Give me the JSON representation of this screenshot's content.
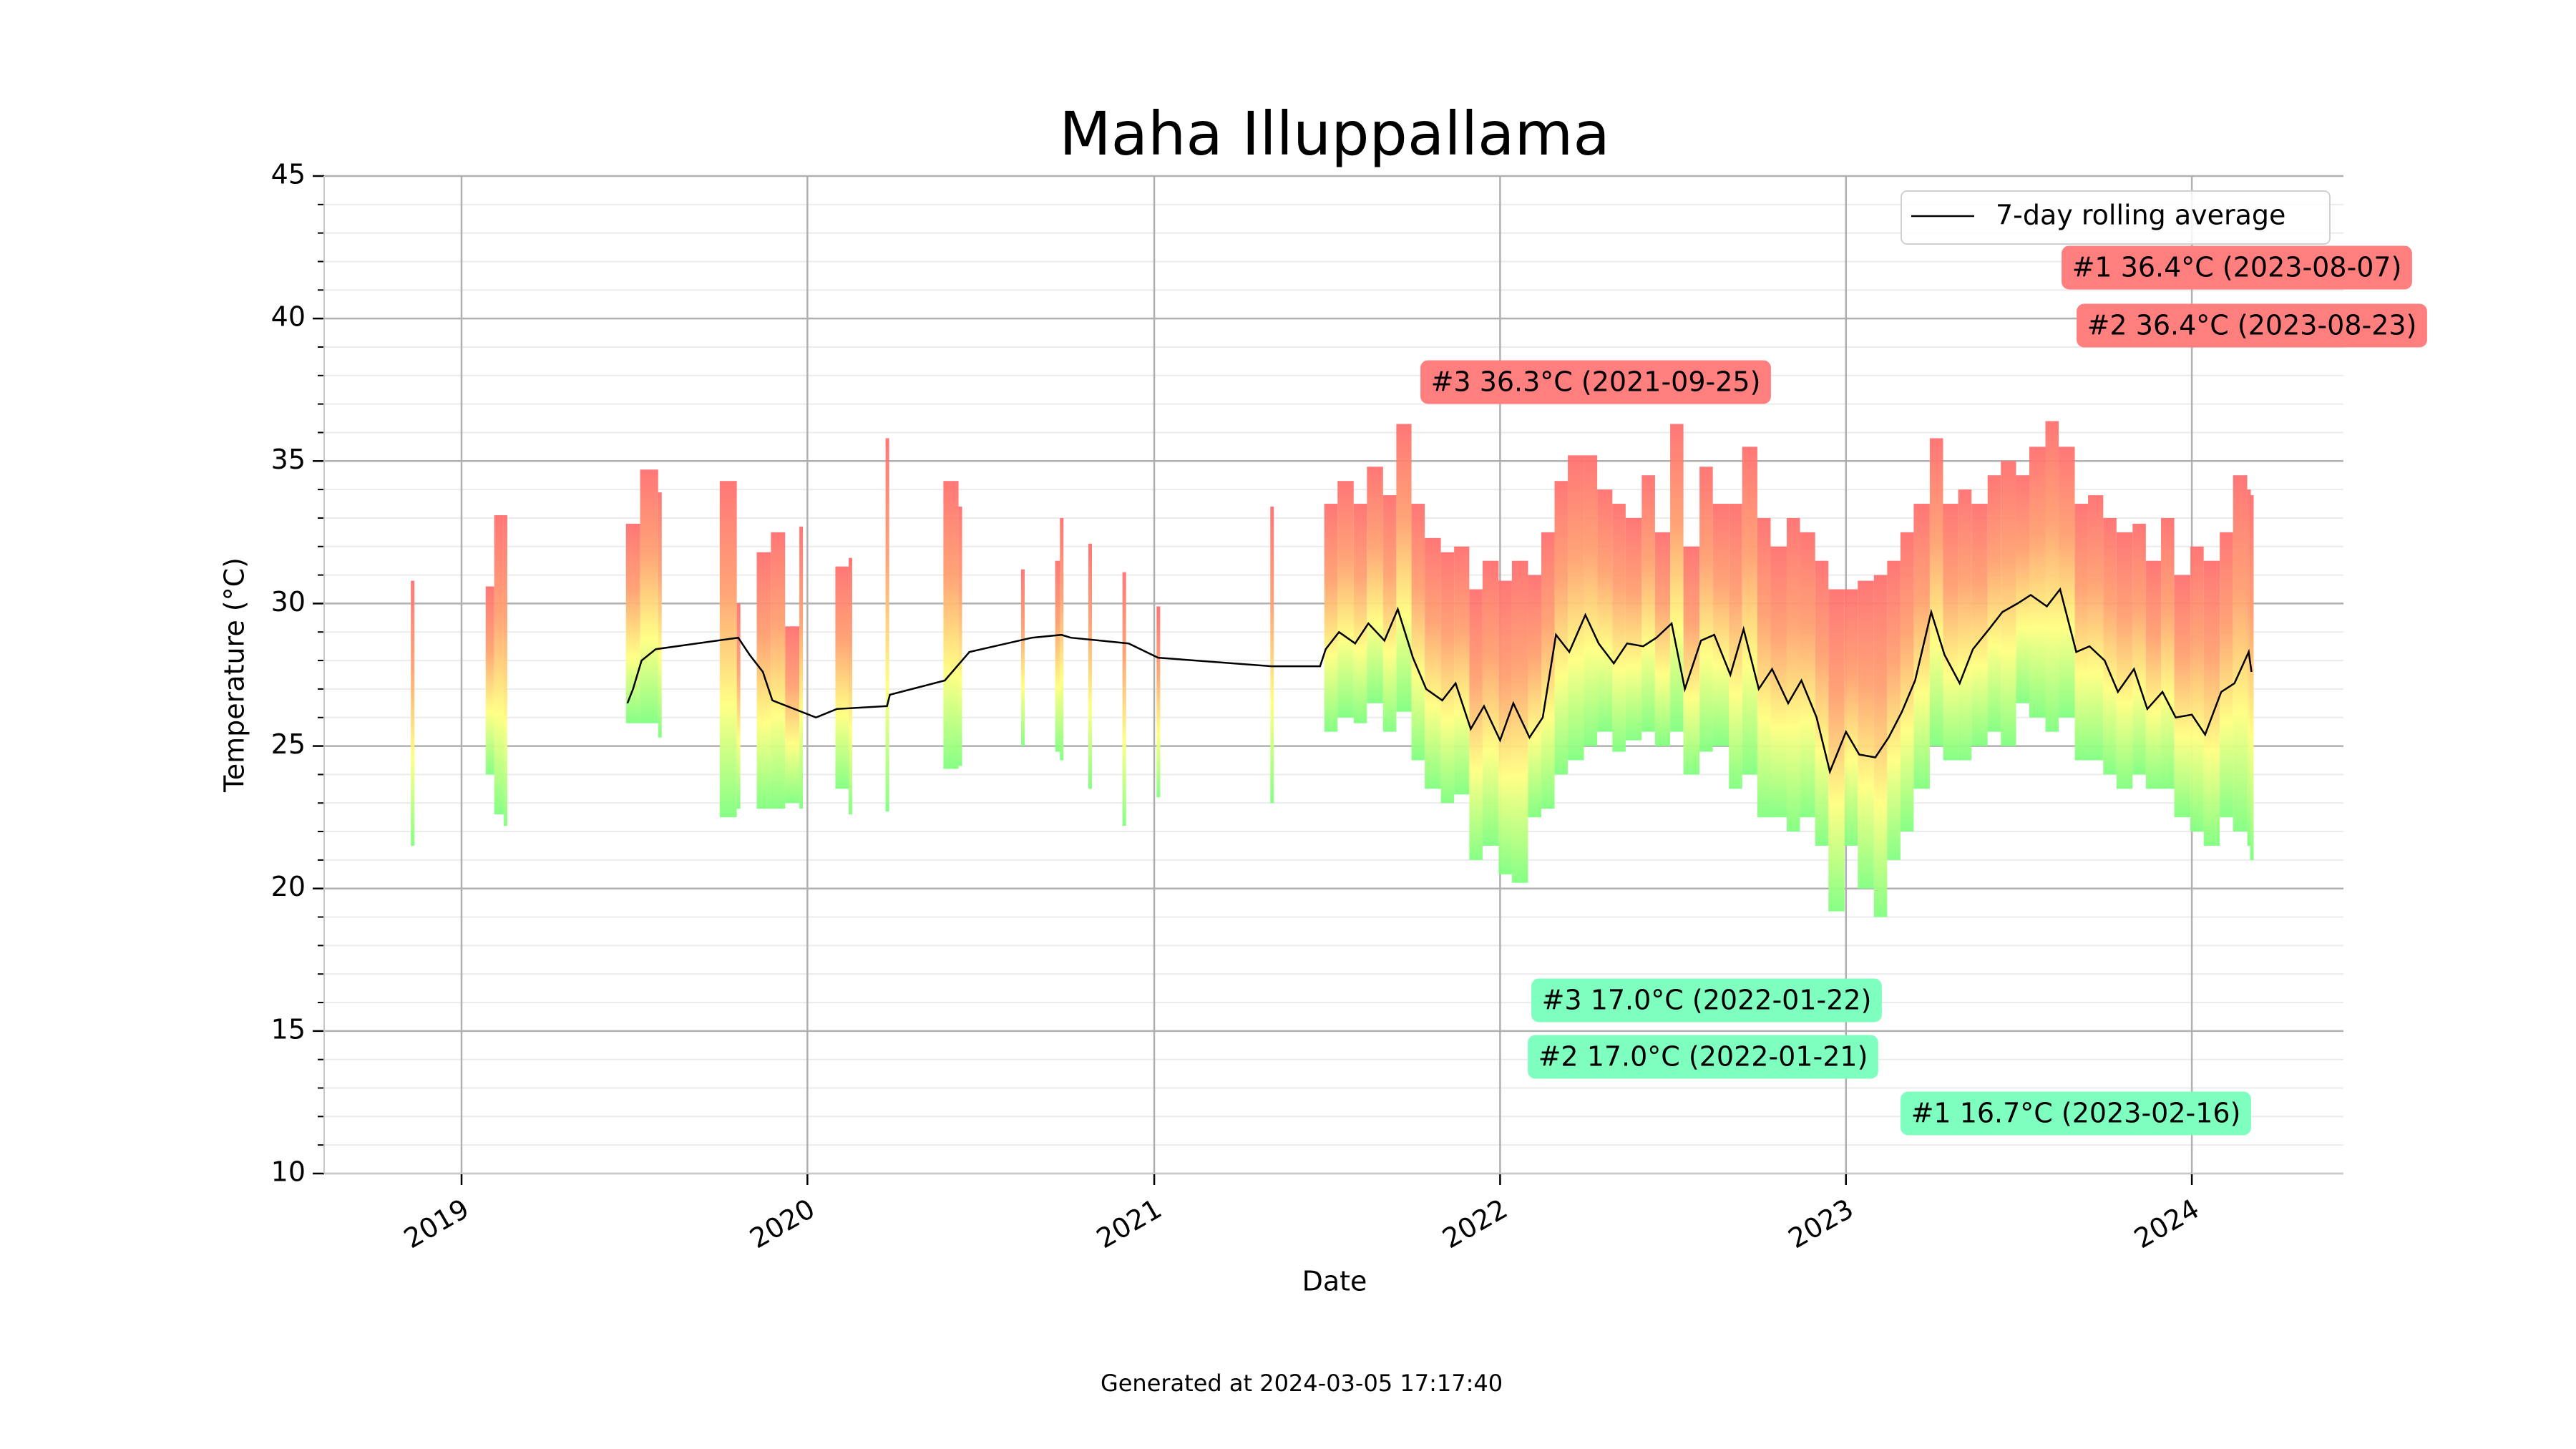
{
  "chart_data": {
    "type": "range-bar",
    "title": "Maha Illuppallama",
    "x_label": "Date",
    "y_label": "Temperature (°C)",
    "xlim": [
      "2018-08-09",
      "2024-06-09"
    ],
    "xticks": [
      {
        "value": "2019-01-01",
        "label": "2019"
      },
      {
        "value": "2020-01-01",
        "label": "2020"
      },
      {
        "value": "2021-01-01",
        "label": "2021"
      },
      {
        "value": "2022-01-01",
        "label": "2022"
      },
      {
        "value": "2023-01-01",
        "label": "2023"
      },
      {
        "value": "2024-01-01",
        "label": "2024"
      }
    ],
    "ylim": [
      10,
      45
    ],
    "yticks": [
      10,
      15,
      20,
      25,
      30,
      35,
      40,
      45
    ],
    "yminorticks": [
      11,
      12,
      13,
      14,
      16,
      17,
      18,
      19,
      21,
      22,
      23,
      24,
      26,
      27,
      28,
      29,
      31,
      32,
      33,
      34,
      36,
      37,
      38,
      39,
      41,
      42,
      43,
      44
    ],
    "grid": true,
    "bar_colors": [
      "#80ff80",
      "#ffff80",
      "#ffa070",
      "#ff7070"
    ],
    "bars": {
      "x": [
        "2018-11-10",
        "2019-01-28",
        "2019-02-06",
        "2019-02-16",
        "2019-06-25",
        "2019-07-10",
        "2019-07-29",
        "2019-10-02",
        "2019-10-20",
        "2019-11-10",
        "2019-11-25",
        "2019-12-10",
        "2019-12-25",
        "2020-02-01",
        "2020-02-15",
        "2020-03-25",
        "2020-05-25",
        "2020-06-10",
        "2020-08-15",
        "2020-09-20",
        "2020-09-25",
        "2020-10-25",
        "2020-11-30",
        "2021-01-05",
        "2021-05-05",
        "2021-07-01",
        "2021-07-15",
        "2021-08-01",
        "2021-08-15",
        "2021-09-01",
        "2021-09-15",
        "2021-10-01",
        "2021-10-15",
        "2021-11-01",
        "2021-11-15",
        "2021-12-01",
        "2021-12-15",
        "2022-01-01",
        "2022-01-15",
        "2022-02-01",
        "2022-02-15",
        "2022-03-01",
        "2022-03-15",
        "2022-04-01",
        "2022-04-15",
        "2022-05-01",
        "2022-05-15",
        "2022-06-01",
        "2022-06-15",
        "2022-07-01",
        "2022-07-15",
        "2022-08-01",
        "2022-08-15",
        "2022-09-01",
        "2022-09-15",
        "2022-10-01",
        "2022-10-15",
        "2022-11-01",
        "2022-11-15",
        "2022-12-01",
        "2022-12-15",
        "2023-01-01",
        "2023-01-15",
        "2023-02-01",
        "2023-02-15",
        "2023-03-01",
        "2023-03-15",
        "2023-04-01",
        "2023-04-15",
        "2023-05-01",
        "2023-05-15",
        "2023-06-01",
        "2023-06-15",
        "2023-07-01",
        "2023-07-15",
        "2023-08-01",
        "2023-08-15",
        "2023-09-01",
        "2023-09-15",
        "2023-10-01",
        "2023-10-15",
        "2023-11-01",
        "2023-11-15",
        "2023-12-01",
        "2023-12-15",
        "2024-01-01",
        "2024-01-15",
        "2024-02-01",
        "2024-02-15",
        "2024-03-01",
        "2024-03-04"
      ],
      "low": [
        21.5,
        24,
        22.6,
        22.2,
        25.8,
        25.8,
        25.3,
        22.5,
        22.8,
        22.8,
        22.8,
        23,
        22.8,
        23.5,
        22.6,
        22.7,
        24.2,
        24.3,
        25,
        24.8,
        24.5,
        23.5,
        22.2,
        23.2,
        23,
        25.5,
        26,
        25.8,
        26.5,
        25.5,
        26.2,
        24.5,
        23.5,
        23,
        23.3,
        21,
        21.5,
        20.5,
        20.2,
        22.5,
        22.8,
        24,
        24.5,
        25,
        25.5,
        24.8,
        25.2,
        25.5,
        25,
        25.5,
        24,
        24.8,
        25,
        23.5,
        24,
        22.5,
        22.5,
        22,
        22.5,
        21.5,
        19.2,
        21.5,
        20,
        19,
        21,
        22,
        23.5,
        25,
        24.5,
        24.5,
        25,
        25.5,
        25,
        26.5,
        26,
        25.5,
        26,
        24.5,
        24.5,
        24,
        23.5,
        24,
        23.5,
        23.5,
        22.5,
        22,
        21.5,
        22.5,
        22,
        21.5,
        21
      ],
      "high": [
        30.8,
        30.6,
        33.1,
        33.1,
        32.8,
        34.7,
        33.9,
        34.3,
        30,
        31.8,
        32.5,
        29.2,
        32.7,
        31.3,
        31.6,
        35.8,
        34.3,
        33.4,
        31.2,
        31.5,
        33,
        32.1,
        31.1,
        29.9,
        33.4,
        33.5,
        34.3,
        33.5,
        34.8,
        33.8,
        36.3,
        33.5,
        32.3,
        31.8,
        32,
        30.5,
        31.5,
        30.8,
        31.5,
        31,
        32.5,
        34.3,
        35.2,
        35.2,
        34,
        33.5,
        33,
        34.5,
        32.5,
        36.3,
        32,
        34.8,
        33.5,
        33.5,
        35.5,
        33,
        32,
        33,
        32.5,
        31.5,
        30.5,
        30.5,
        30.8,
        31,
        31.5,
        32.5,
        33.5,
        35.8,
        33.5,
        34,
        33.5,
        34.5,
        35,
        34.5,
        35.5,
        36.4,
        35.5,
        33.5,
        33.8,
        33,
        32.5,
        32.8,
        31.5,
        33,
        31,
        32,
        31.5,
        32.5,
        34.5,
        34,
        33.8
      ]
    },
    "line": {
      "name": "7-day rolling average",
      "color": "#000000",
      "x": [
        "2019-06-25",
        "2019-07-01",
        "2019-07-10",
        "2019-07-25",
        "2019-10-20",
        "2019-11-01",
        "2019-11-15",
        "2019-11-25",
        "2020-01-10",
        "2020-02-01",
        "2020-03-25",
        "2020-03-28",
        "2020-05-25",
        "2020-06-20",
        "2020-08-25",
        "2020-09-25",
        "2020-10-05",
        "2020-12-05",
        "2021-01-05",
        "2021-05-05",
        "2021-06-25",
        "2021-07-01",
        "2021-07-15",
        "2021-08-01",
        "2021-08-15",
        "2021-09-01",
        "2021-09-15",
        "2021-10-01",
        "2021-10-15",
        "2021-11-01",
        "2021-11-15",
        "2021-12-01",
        "2021-12-15",
        "2022-01-01",
        "2022-01-15",
        "2022-02-01",
        "2022-02-15",
        "2022-03-01",
        "2022-03-15",
        "2022-04-01",
        "2022-04-15",
        "2022-05-01",
        "2022-05-15",
        "2022-06-01",
        "2022-06-15",
        "2022-07-01",
        "2022-07-15",
        "2022-08-01",
        "2022-08-15",
        "2022-09-01",
        "2022-09-15",
        "2022-10-01",
        "2022-10-15",
        "2022-11-01",
        "2022-11-15",
        "2022-12-01",
        "2022-12-15",
        "2023-01-01",
        "2023-01-15",
        "2023-02-01",
        "2023-02-15",
        "2023-03-01",
        "2023-03-15",
        "2023-04-01",
        "2023-04-15",
        "2023-05-01",
        "2023-05-15",
        "2023-06-01",
        "2023-06-15",
        "2023-07-01",
        "2023-07-15",
        "2023-08-01",
        "2023-08-15",
        "2023-09-01",
        "2023-09-15",
        "2023-10-01",
        "2023-10-15",
        "2023-11-01",
        "2023-11-15",
        "2023-12-01",
        "2023-12-15",
        "2024-01-01",
        "2024-01-15",
        "2024-02-01",
        "2024-02-15",
        "2024-03-01",
        "2024-03-04"
      ],
      "values": [
        26.5,
        27,
        28,
        28.4,
        28.8,
        28.2,
        27.6,
        26.6,
        26,
        26.3,
        26.4,
        26.8,
        27.3,
        28.3,
        28.8,
        28.9,
        28.8,
        28.6,
        28.1,
        27.8,
        27.8,
        28.4,
        29,
        28.6,
        29.3,
        28.7,
        29.8,
        28.1,
        27,
        26.6,
        27.2,
        25.6,
        26.4,
        25.2,
        26.5,
        25.3,
        26,
        28.9,
        28.3,
        29.6,
        28.6,
        27.9,
        28.6,
        28.5,
        28.8,
        29.3,
        27,
        28.7,
        28.9,
        27.5,
        29.1,
        27,
        27.7,
        26.5,
        27.3,
        26,
        24.1,
        25.5,
        24.7,
        24.6,
        25.3,
        26.2,
        27.3,
        29.7,
        28.2,
        27.2,
        28.4,
        29.1,
        29.7,
        30,
        30.3,
        29.9,
        30.5,
        28.3,
        28.5,
        28,
        26.9,
        27.7,
        26.3,
        26.9,
        26,
        26.1,
        25.4,
        26.9,
        27.2,
        28.3,
        27.6
      ]
    },
    "legend": "upper right",
    "annotations": [
      {
        "text": "#1 36.4°C (2023-08-07)",
        "color": "#ff7f7f",
        "text_color": "#b00000"
      },
      {
        "text": "#2 36.4°C (2023-08-23)",
        "color": "#ff7f7f",
        "text_color": "#b00000"
      },
      {
        "text": "#3 36.3°C (2021-09-25)",
        "color": "#ff7f7f",
        "text_color": "#b00000"
      },
      {
        "text": "#1 16.7°C (2023-02-16)",
        "color": "#7fffbf",
        "text_color": "#000080"
      },
      {
        "text": "#2 17.0°C (2022-01-21)",
        "color": "#7fffbf",
        "text_color": "#000080"
      },
      {
        "text": "#3 17.0°C (2022-01-22)",
        "color": "#7fffbf",
        "text_color": "#000080"
      }
    ]
  },
  "footer": "Generated at 2024-03-05 17:17:40"
}
